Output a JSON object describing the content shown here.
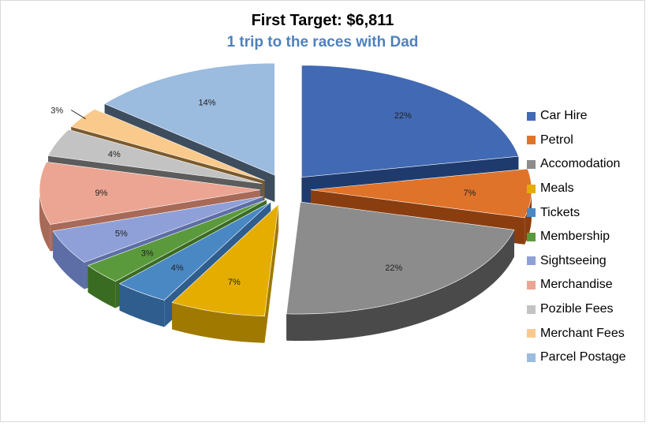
{
  "chart_data": {
    "type": "pie",
    "title": "First Target: $6,811",
    "subtitle": "1 trip to the races with Dad",
    "legend_position": "right",
    "exploded": true,
    "three_d": true,
    "slices": [
      {
        "label": "Car Hire",
        "value": 22,
        "display": "22%",
        "color": "#4169b4",
        "side": "#1f3b6e"
      },
      {
        "label": "Petrol",
        "value": 7,
        "display": "7%",
        "color": "#e0732a",
        "side": "#8a3e10"
      },
      {
        "label": "Accomodation",
        "value": 22,
        "display": "22%",
        "color": "#8c8c8c",
        "side": "#4a4a4a"
      },
      {
        "label": "Meals",
        "value": 7,
        "display": "7%",
        "color": "#e5ad00",
        "side": "#a07900"
      },
      {
        "label": "Tickets",
        "value": 4,
        "display": "4%",
        "color": "#4a88c4",
        "side": "#2e5d8e"
      },
      {
        "label": "Membership",
        "value": 3,
        "display": "3%",
        "color": "#5b9a3c",
        "side": "#3a6b22"
      },
      {
        "label": "Sightseeing",
        "value": 5,
        "display": "5%",
        "color": "#8fa0d8",
        "side": "#5d6ea6"
      },
      {
        "label": "Merchandise",
        "value": 9,
        "display": "9%",
        "color": "#eca592",
        "side": "#a86a58"
      },
      {
        "label": "Pozible Fees",
        "value": 4,
        "display": "4%",
        "color": "#c3c3c3",
        "side": "#5c5c5c"
      },
      {
        "label": "Merchant Fees",
        "value": 3,
        "display": "3%",
        "color": "#f9ca8c",
        "side": "#7a5a2e"
      },
      {
        "label": "Parcel Postage",
        "value": 14,
        "display": "14%",
        "color": "#9bbbdf",
        "side": "#3e4d5e"
      }
    ]
  }
}
